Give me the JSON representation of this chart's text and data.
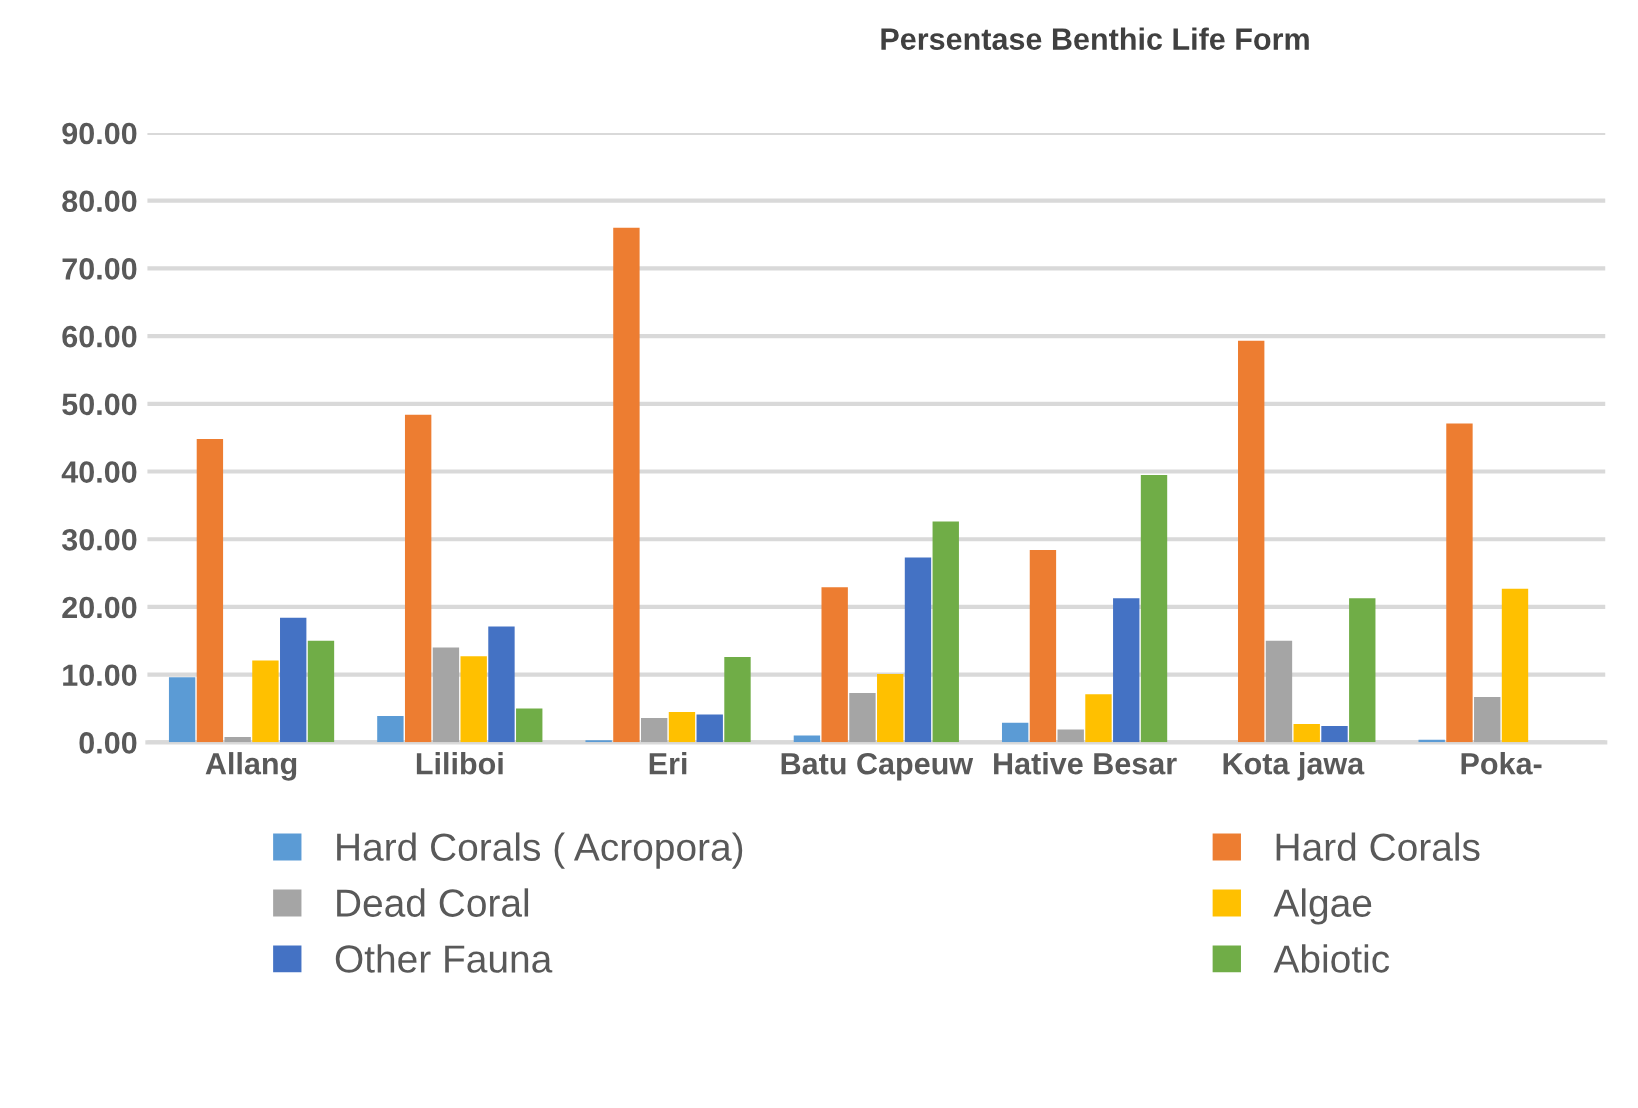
{
  "chart_data": {
    "type": "bar",
    "title": "Persentase Benthic Life Form",
    "categories": [
      "Allang",
      "Liliboi",
      "Eri",
      "Batu Capeuw",
      "Hative Besar",
      "Kota jawa",
      "Poka-"
    ],
    "series": [
      {
        "name": "Hard Corals ( Acropora)",
        "color": "#5b9bd5",
        "values": [
          9.6,
          3.9,
          0.3,
          1.0,
          2.9,
          null,
          0.4
        ]
      },
      {
        "name": "Hard Corals",
        "color": "#ed7d31",
        "values": [
          44.8,
          48.4,
          76.0,
          22.9,
          28.4,
          59.3,
          47.1
        ]
      },
      {
        "name": "Dead Coral",
        "color": "#a5a5a5",
        "values": [
          0.8,
          14.0,
          3.6,
          7.3,
          1.9,
          15.0,
          6.7
        ]
      },
      {
        "name": "Algae",
        "color": "#ffc000",
        "values": [
          12.1,
          12.7,
          4.5,
          10.1,
          7.1,
          2.7,
          22.7
        ]
      },
      {
        "name": "Other Fauna",
        "color": "#4472c4",
        "values": [
          18.4,
          17.1,
          4.1,
          27.3,
          21.3,
          2.4,
          null
        ]
      },
      {
        "name": "Abiotic",
        "color": "#70ad47",
        "values": [
          15.0,
          5.0,
          12.6,
          32.6,
          39.5,
          21.3,
          null
        ]
      }
    ],
    "ylim": [
      0,
      90
    ],
    "yticks": [
      {
        "value": 0,
        "label": "0.00"
      },
      {
        "value": 10,
        "label": "10.00"
      },
      {
        "value": 20,
        "label": "20.00"
      },
      {
        "value": 30,
        "label": "30.00"
      },
      {
        "value": 40,
        "label": "40.00"
      },
      {
        "value": 50,
        "label": "50.00"
      },
      {
        "value": 60,
        "label": "60.00"
      },
      {
        "value": 70,
        "label": "70.00"
      },
      {
        "value": 80,
        "label": "80.00"
      },
      {
        "value": 90,
        "label": "90.00"
      }
    ],
    "grid": "y",
    "legend": "bottom"
  }
}
